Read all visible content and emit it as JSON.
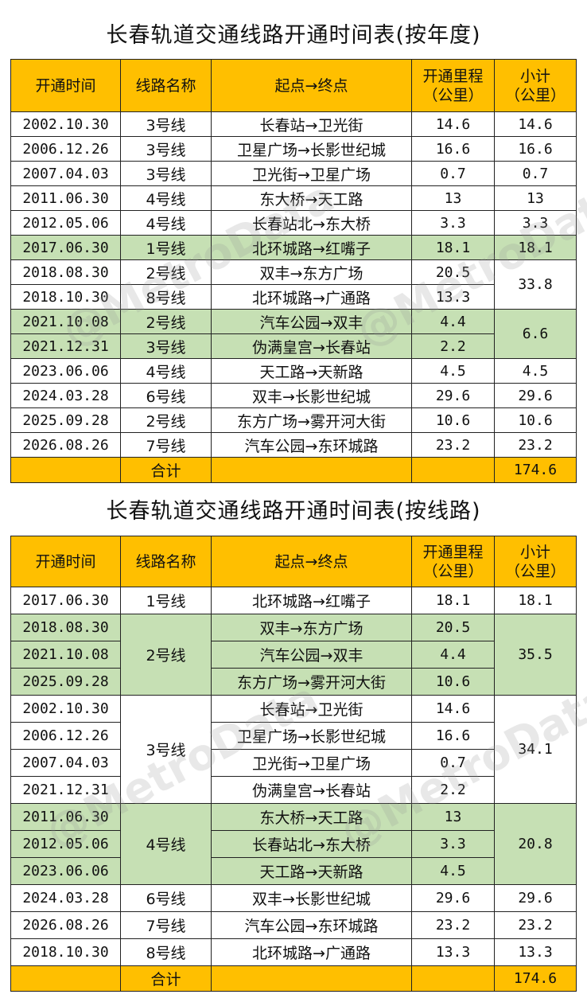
{
  "watermark": "@MetroData",
  "headers": {
    "date": "开通时间",
    "line": "线路名称",
    "route": "起点→终点",
    "length": "开通里程\n（公里）",
    "subtotal": "小计\n（公里）"
  },
  "table_by_year": {
    "title": "长春轨道交通线路开通时间表(按年度)",
    "rows": [
      {
        "date": "2002.10.30",
        "line": "3号线",
        "route": "长春站→卫光街",
        "length": "14.6",
        "subtotal": "14.6"
      },
      {
        "date": "2006.12.26",
        "line": "3号线",
        "route": "卫星广场→长影世纪城",
        "length": "16.6",
        "subtotal": "16.6"
      },
      {
        "date": "2007.04.03",
        "line": "3号线",
        "route": "卫光街→卫星广场",
        "length": "0.7",
        "subtotal": "0.7"
      },
      {
        "date": "2011.06.30",
        "line": "4号线",
        "route": "东大桥→天工路",
        "length": "13",
        "subtotal": "13"
      },
      {
        "date": "2012.05.06",
        "line": "4号线",
        "route": "长春站北→东大桥",
        "length": "3.3",
        "subtotal": "3.3"
      },
      {
        "date": "2017.06.30",
        "line": "1号线",
        "route": "北环城路→红嘴子",
        "length": "18.1",
        "subtotal": "18.1"
      },
      {
        "date": "2018.08.30",
        "line": "2号线",
        "route": "双丰→东方广场",
        "length": "20.5",
        "subtotal": "33.8"
      },
      {
        "date": "2018.10.30",
        "line": "8号线",
        "route": "北环城路→广通路",
        "length": "13.3",
        "subtotal": ""
      },
      {
        "date": "2021.10.08",
        "line": "2号线",
        "route": "汽车公园→双丰",
        "length": "4.4",
        "subtotal": "6.6"
      },
      {
        "date": "2021.12.31",
        "line": "3号线",
        "route": "伪满皇宫→长春站",
        "length": "2.2",
        "subtotal": ""
      },
      {
        "date": "2023.06.06",
        "line": "4号线",
        "route": "天工路→天新路",
        "length": "4.5",
        "subtotal": "4.5"
      },
      {
        "date": "2024.03.28",
        "line": "6号线",
        "route": "双丰→长影世纪城",
        "length": "29.6",
        "subtotal": "29.6"
      },
      {
        "date": "2025.09.28",
        "line": "2号线",
        "route": "东方广场→雾开河大街",
        "length": "10.6",
        "subtotal": "10.6"
      },
      {
        "date": "2026.08.26",
        "line": "7号线",
        "route": "汽车公园→东环城路",
        "length": "23.2",
        "subtotal": "23.2"
      }
    ],
    "total_label": "合计",
    "total_value": "174.6"
  },
  "table_by_line": {
    "title": "长春轨道交通线路开通时间表(按线路)",
    "groups": [
      {
        "line": "1号线",
        "subtotal": "18.1",
        "rows": [
          {
            "date": "2017.06.30",
            "route": "北环城路→红嘴子",
            "length": "18.1"
          }
        ]
      },
      {
        "line": "2号线",
        "subtotal": "35.5",
        "rows": [
          {
            "date": "2018.08.30",
            "route": "双丰→东方广场",
            "length": "20.5"
          },
          {
            "date": "2021.10.08",
            "route": "汽车公园→双丰",
            "length": "4.4"
          },
          {
            "date": "2025.09.28",
            "route": "东方广场→雾开河大街",
            "length": "10.6"
          }
        ]
      },
      {
        "line": "3号线",
        "subtotal": "34.1",
        "rows": [
          {
            "date": "2002.10.30",
            "route": "长春站→卫光街",
            "length": "14.6"
          },
          {
            "date": "2006.12.26",
            "route": "卫星广场→长影世纪城",
            "length": "16.6"
          },
          {
            "date": "2007.04.03",
            "route": "卫光街→卫星广场",
            "length": "0.7"
          },
          {
            "date": "2021.12.31",
            "route": "伪满皇宫→长春站",
            "length": "2.2"
          }
        ]
      },
      {
        "line": "4号线",
        "subtotal": "20.8",
        "rows": [
          {
            "date": "2011.06.30",
            "route": "东大桥→天工路",
            "length": "13"
          },
          {
            "date": "2012.05.06",
            "route": "长春站北→东大桥",
            "length": "3.3"
          },
          {
            "date": "2023.06.06",
            "route": "天工路→天新路",
            "length": "4.5"
          }
        ]
      },
      {
        "line": "6号线",
        "subtotal": "29.6",
        "rows": [
          {
            "date": "2024.03.28",
            "route": "双丰→长影世纪城",
            "length": "29.6"
          }
        ]
      },
      {
        "line": "7号线",
        "subtotal": "23.2",
        "rows": [
          {
            "date": "2026.08.26",
            "route": "汽车公园→东环城路",
            "length": "23.2"
          }
        ]
      },
      {
        "line": "8号线",
        "subtotal": "13.3",
        "rows": [
          {
            "date": "2018.10.30",
            "route": "北环城路→广通路",
            "length": "13.3"
          }
        ]
      }
    ],
    "total_label": "合计",
    "total_value": "174.6"
  }
}
